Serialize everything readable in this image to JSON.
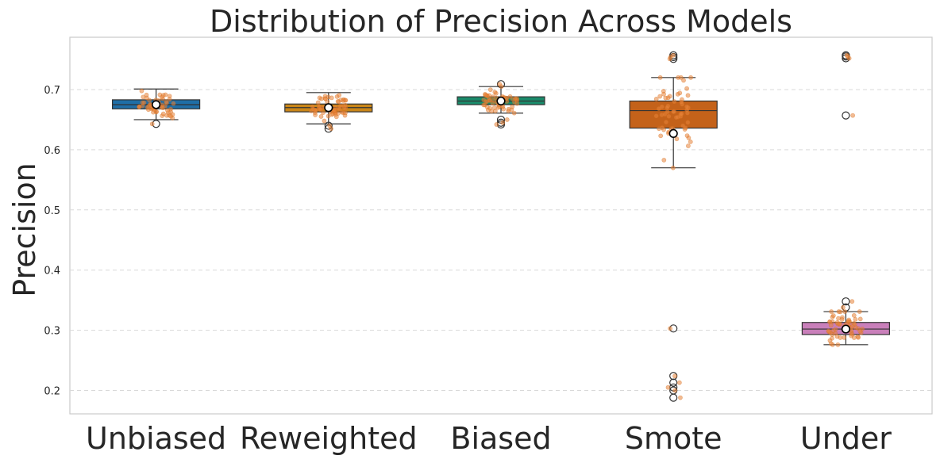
{
  "chart_data": {
    "type": "box",
    "title": "Distribution of Precision Across Models",
    "xlabel": "",
    "ylabel": "Precision",
    "ylim": [
      0.16,
      0.785
    ],
    "yticks": [
      "0.2",
      "0.3",
      "0.4",
      "0.5",
      "0.6",
      "0.7"
    ],
    "grid": "y-dashed",
    "categories": [
      "Unbiased",
      "Reweighted",
      "Biased",
      "Smote",
      "Under"
    ],
    "colors": [
      "#1f6ea6",
      "#c98619",
      "#1a8a6a",
      "#c4621a",
      "#c97fba"
    ],
    "jitter_color": "#e8833a",
    "boxes": [
      {
        "category": "Unbiased",
        "whislo": 0.65,
        "q1": 0.668,
        "med": 0.675,
        "q3": 0.683,
        "whishi": 0.701,
        "mean": 0.675,
        "fliers": [
          0.643
        ]
      },
      {
        "category": "Reweighted",
        "whislo": 0.643,
        "q1": 0.663,
        "med": 0.67,
        "q3": 0.676,
        "whishi": 0.695,
        "mean": 0.67,
        "fliers": [
          0.64,
          0.635
        ]
      },
      {
        "category": "Biased",
        "whislo": 0.661,
        "q1": 0.675,
        "med": 0.681,
        "q3": 0.688,
        "whishi": 0.705,
        "mean": 0.681,
        "fliers": [
          0.709,
          0.65,
          0.645,
          0.642
        ]
      },
      {
        "category": "Smote",
        "whislo": 0.57,
        "q1": 0.636,
        "med": 0.665,
        "q3": 0.681,
        "whishi": 0.72,
        "mean": 0.627,
        "fliers": [
          0.757,
          0.754,
          0.751,
          0.303,
          0.224,
          0.213,
          0.205,
          0.2,
          0.188
        ]
      },
      {
        "category": "Under",
        "whislo": 0.276,
        "q1": 0.293,
        "med": 0.302,
        "q3": 0.313,
        "whishi": 0.331,
        "mean": 0.302,
        "fliers": [
          0.757,
          0.755,
          0.752,
          0.657,
          0.348,
          0.338
        ]
      }
    ]
  }
}
